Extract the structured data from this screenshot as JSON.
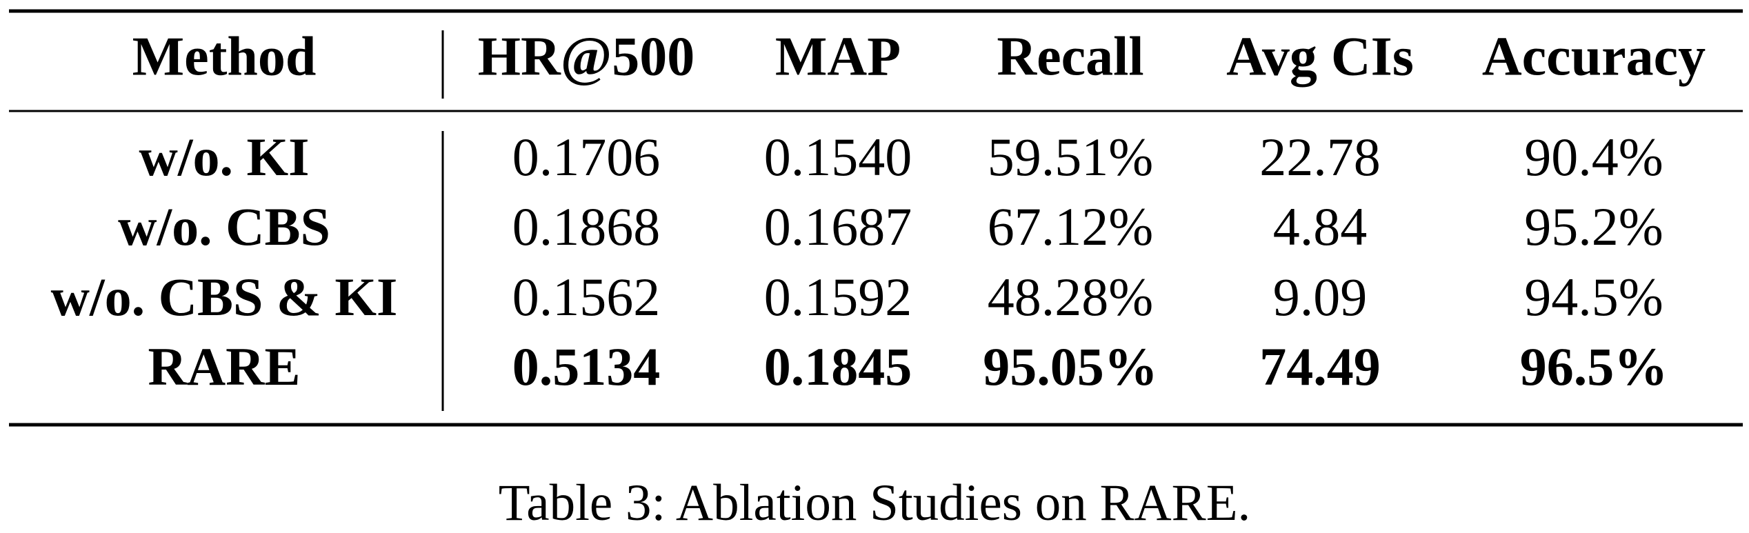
{
  "table": {
    "header": [
      "Method",
      "HR@500",
      "MAP",
      "Recall",
      "Avg CIs",
      "Accuracy"
    ],
    "rows": [
      [
        "w/o. KI",
        "0.1706",
        "0.1540",
        "59.51%",
        "22.78",
        "90.4%"
      ],
      [
        "w/o. CBS",
        "0.1868",
        "0.1687",
        "67.12%",
        "4.84",
        "95.2%"
      ],
      [
        "w/o. CBS & KI",
        "0.1562",
        "0.1592",
        "48.28%",
        "9.09",
        "94.5%"
      ],
      [
        "RARE",
        "0.5134",
        "0.1845",
        "95.05%",
        "74.49",
        "96.5%"
      ]
    ]
  },
  "caption": "Table 3: Ablation Studies on RARE."
}
